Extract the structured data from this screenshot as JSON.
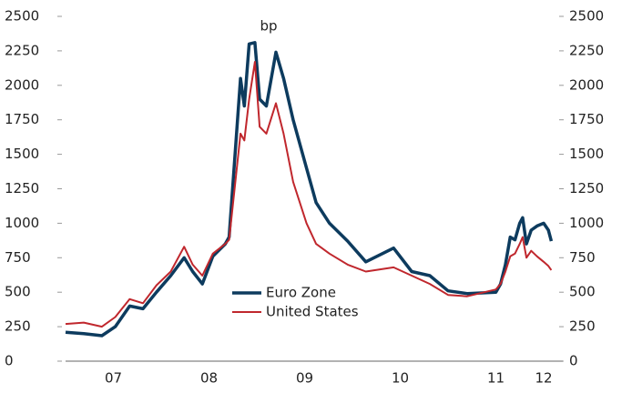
{
  "chart_data": {
    "type": "line",
    "annotation": "bp",
    "x": [
      2007.0,
      2007.19,
      2007.38,
      2007.52,
      2007.67,
      2007.81,
      2007.95,
      2008.1,
      2008.24,
      2008.33,
      2008.43,
      2008.54,
      2008.67,
      2008.71,
      2008.83,
      2008.87,
      2008.92,
      2008.98,
      2009.03,
      2009.1,
      2009.2,
      2009.28,
      2009.38,
      2009.52,
      2009.62,
      2009.76,
      2009.95,
      2010.14,
      2010.43,
      2010.62,
      2010.81,
      2011.0,
      2011.2,
      2011.5,
      2011.55,
      2011.6,
      2011.65,
      2011.7,
      2011.75,
      2011.78,
      2011.82,
      2011.87,
      2011.93,
      2012.0,
      2012.05,
      2012.08
    ],
    "series": [
      {
        "name": "Euro Zone",
        "color": "#0d3b5e",
        "values": [
          210,
          200,
          185,
          250,
          400,
          380,
          500,
          620,
          750,
          650,
          560,
          760,
          850,
          900,
          2050,
          1850,
          2300,
          2310,
          1900,
          1850,
          2240,
          2050,
          1750,
          1400,
          1150,
          1000,
          870,
          720,
          820,
          650,
          620,
          510,
          490,
          500,
          560,
          700,
          900,
          880,
          1000,
          1040,
          850,
          950,
          980,
          1000,
          950,
          870
        ]
      },
      {
        "name": "United States",
        "color": "#c0272d",
        "values": [
          270,
          280,
          250,
          320,
          450,
          420,
          550,
          650,
          830,
          700,
          620,
          780,
          850,
          880,
          1650,
          1600,
          1900,
          2170,
          1700,
          1650,
          1870,
          1650,
          1300,
          1000,
          850,
          780,
          700,
          650,
          680,
          620,
          560,
          480,
          470,
          520,
          560,
          650,
          760,
          780,
          850,
          900,
          750,
          800,
          760,
          720,
          690,
          660
        ]
      }
    ],
    "xlim": [
      2007,
      2012.2
    ],
    "xticks": [
      {
        "value": 2007.5,
        "label": "07"
      },
      {
        "value": 2008.5,
        "label": "08"
      },
      {
        "value": 2009.5,
        "label": "09"
      },
      {
        "value": 2010.5,
        "label": "10"
      },
      {
        "value": 2011.5,
        "label": "11"
      },
      {
        "value": 2012.0,
        "label": "12"
      }
    ],
    "ylim": [
      0,
      2500
    ],
    "yticks": [
      0,
      250,
      500,
      750,
      1000,
      1250,
      1500,
      1750,
      2000,
      2250,
      2500
    ],
    "y2lim": [
      0,
      2500
    ],
    "y2ticks": [
      0,
      250,
      500,
      750,
      1000,
      1250,
      1500,
      1750,
      2000,
      2250,
      2500
    ]
  }
}
